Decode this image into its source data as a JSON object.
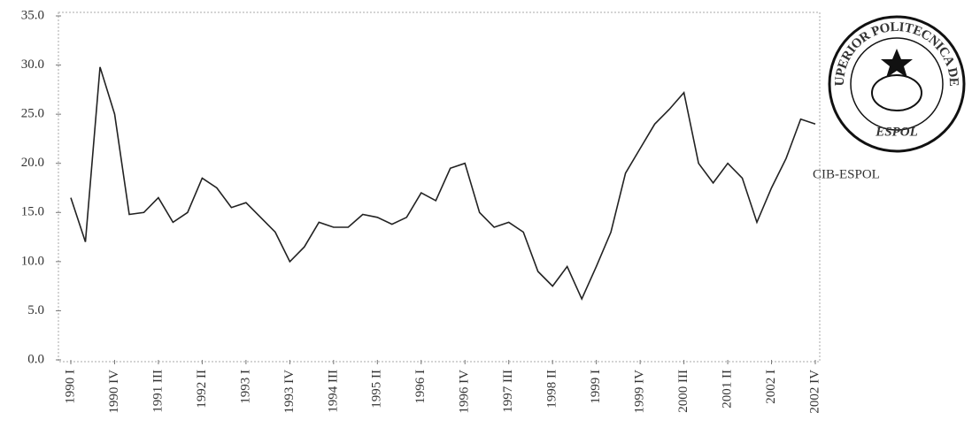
{
  "chart_data": {
    "type": "line",
    "categories": [
      "1990 I",
      null,
      null,
      "1990 IV",
      null,
      null,
      "1991 III",
      null,
      null,
      "1992  II",
      null,
      null,
      "1993 I",
      null,
      null,
      "1993 IV",
      null,
      null,
      "1994 III",
      null,
      null,
      "1995  II",
      null,
      null,
      "1996  I",
      null,
      null,
      "1996 IV",
      null,
      null,
      "1997 III",
      null,
      null,
      "1998  II",
      null,
      null,
      "1999 I",
      null,
      null,
      "1999 IV",
      null,
      null,
      "2000 III",
      null,
      null,
      "2001  II",
      null,
      null,
      "2002  I",
      null,
      null,
      "2002 IV"
    ],
    "values": [
      16.5,
      12.0,
      29.8,
      25.0,
      14.8,
      15.0,
      16.5,
      14.0,
      15.0,
      18.5,
      17.5,
      15.5,
      16.0,
      14.5,
      13.0,
      10.0,
      11.5,
      14.0,
      13.5,
      13.5,
      14.8,
      14.5,
      13.8,
      14.5,
      17.0,
      16.2,
      19.5,
      20.0,
      15.0,
      13.5,
      14.0,
      13.0,
      9.0,
      7.5,
      9.5,
      6.2,
      9.5,
      13.0,
      19.0,
      21.5,
      24.0,
      25.5,
      27.2,
      20.0,
      18.0,
      20.0,
      18.5,
      14.0,
      17.5,
      20.5,
      24.5,
      24.0
    ],
    "color": "#222222",
    "ylim": [
      0,
      35
    ],
    "yticks": [
      {
        "value": 0,
        "label": "0.0"
      },
      {
        "value": 5,
        "label": "5.0"
      },
      {
        "value": 10,
        "label": "10.0"
      },
      {
        "value": 15,
        "label": "15.0"
      },
      {
        "value": 20,
        "label": "20.0"
      },
      {
        "value": 25,
        "label": "25.0"
      },
      {
        "value": 30,
        "label": "30.0"
      },
      {
        "value": 35,
        "label": "35.0"
      }
    ],
    "grid": false
  },
  "watermark": {
    "ring_text": "ESCUELA SUPERIOR POLITECNICA DEL LITORAL",
    "center": "ESPOL",
    "caption": "CIB-ESPOL"
  }
}
